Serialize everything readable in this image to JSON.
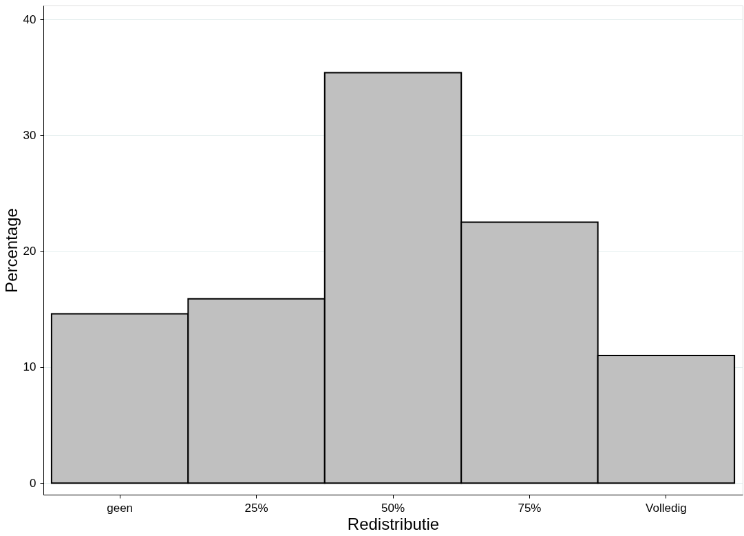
{
  "chart_data": {
    "type": "bar",
    "xlabel": "Redistributie",
    "ylabel": "Percentage",
    "categories": [
      "geen",
      "25%",
      "50%",
      "75%",
      "Volledig"
    ],
    "values": [
      14.6,
      15.9,
      35.4,
      22.5,
      11.0
    ],
    "color": "#c0c0c0",
    "ylim": [
      -1,
      41.2
    ],
    "yticks": [
      0,
      10,
      20,
      30,
      40
    ],
    "grid": "y"
  }
}
